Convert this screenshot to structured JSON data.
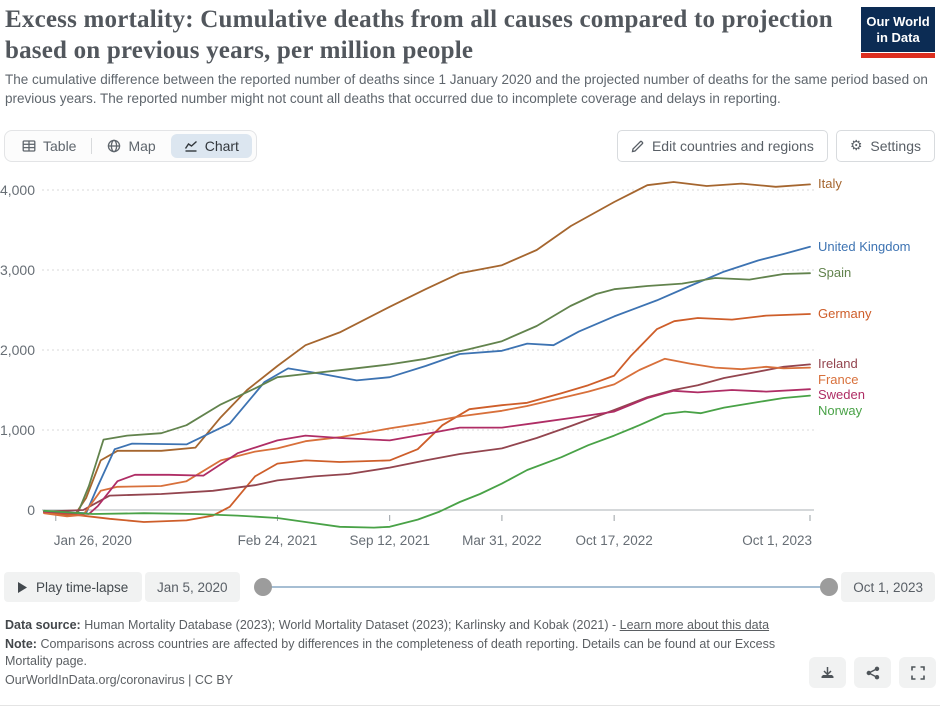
{
  "header": {
    "title": "Excess mortality: Cumulative deaths from all causes compared to projection based on previous years, per million people",
    "subtitle": "The cumulative difference between the reported number of deaths since 1 January 2020 and the projected number of deaths for the same period based on previous years. The reported number might not count all deaths that occurred due to incomplete coverage and delays in reporting.",
    "logo_line1": "Our World",
    "logo_line2": "in Data",
    "logo_colors": {
      "navy": "#0C2C54",
      "red": "#DC2E1F"
    }
  },
  "toolbar": {
    "tabs": [
      {
        "label": "Table",
        "icon": "table-icon",
        "selected": false
      },
      {
        "label": "Map",
        "icon": "globe-icon",
        "selected": false
      },
      {
        "label": "Chart",
        "icon": "line-chart-icon",
        "selected": true
      }
    ],
    "edit_button": "Edit countries and regions",
    "settings_button": "Settings",
    "selected_tab_bg": "#DCE6F0"
  },
  "chart_data": {
    "type": "line",
    "title": "Excess mortality: Cumulative deaths from all causes compared to projection based on previous years, per million people",
    "xlabel": "",
    "ylabel": "",
    "ylim": [
      -300,
      4200
    ],
    "grid": "horizontal-dashed",
    "legend_position": "right-edge-line-labels",
    "x_range": [
      "2020-01-05",
      "2023-10-01"
    ],
    "yticks": [
      0,
      1000,
      2000,
      3000,
      4000
    ],
    "ytick_labels": [
      "0",
      "1,000",
      "2,000",
      "3,000",
      "4,000"
    ],
    "xticks": [
      {
        "date": "2020-01-26",
        "label": "Jan 26, 2020"
      },
      {
        "date": "2021-02-24",
        "label": "Feb 24, 2021"
      },
      {
        "date": "2021-09-12",
        "label": "Sep 12, 2021"
      },
      {
        "date": "2022-03-31",
        "label": "Mar 31, 2022"
      },
      {
        "date": "2022-10-17",
        "label": "Oct 17, 2022"
      },
      {
        "date": "2023-10-01",
        "label": "Oct 1, 2023"
      }
    ],
    "series": [
      {
        "name": "Italy",
        "color": "#A5662F",
        "points": [
          [
            "2020-01-05",
            -30
          ],
          [
            "2020-02-15",
            -60
          ],
          [
            "2020-03-01",
            -50
          ],
          [
            "2020-03-20",
            150
          ],
          [
            "2020-04-15",
            620
          ],
          [
            "2020-05-15",
            740
          ],
          [
            "2020-08-01",
            740
          ],
          [
            "2020-10-01",
            780
          ],
          [
            "2020-11-15",
            1160
          ],
          [
            "2021-01-01",
            1500
          ],
          [
            "2021-02-24",
            1800
          ],
          [
            "2021-04-15",
            2060
          ],
          [
            "2021-06-15",
            2220
          ],
          [
            "2021-09-12",
            2540
          ],
          [
            "2021-11-15",
            2760
          ],
          [
            "2022-01-15",
            2960
          ],
          [
            "2022-03-31",
            3060
          ],
          [
            "2022-06-01",
            3250
          ],
          [
            "2022-08-01",
            3550
          ],
          [
            "2022-10-17",
            3850
          ],
          [
            "2022-12-15",
            4060
          ],
          [
            "2023-01-31",
            4100
          ],
          [
            "2023-03-31",
            4050
          ],
          [
            "2023-06-01",
            4080
          ],
          [
            "2023-08-01",
            4040
          ],
          [
            "2023-10-01",
            4070
          ]
        ]
      },
      {
        "name": "United Kingdom",
        "color": "#3D73B2",
        "points": [
          [
            "2020-01-05",
            -20
          ],
          [
            "2020-03-20",
            -40
          ],
          [
            "2020-04-10",
            300
          ],
          [
            "2020-05-10",
            760
          ],
          [
            "2020-06-10",
            830
          ],
          [
            "2020-09-15",
            820
          ],
          [
            "2020-12-01",
            1080
          ],
          [
            "2021-02-01",
            1600
          ],
          [
            "2021-03-15",
            1770
          ],
          [
            "2021-05-15",
            1700
          ],
          [
            "2021-07-15",
            1620
          ],
          [
            "2021-09-12",
            1660
          ],
          [
            "2021-11-15",
            1800
          ],
          [
            "2022-01-15",
            1950
          ],
          [
            "2022-03-31",
            1990
          ],
          [
            "2022-05-15",
            2080
          ],
          [
            "2022-07-01",
            2060
          ],
          [
            "2022-08-15",
            2230
          ],
          [
            "2022-10-17",
            2420
          ],
          [
            "2023-01-01",
            2620
          ],
          [
            "2023-03-01",
            2800
          ],
          [
            "2023-05-01",
            2980
          ],
          [
            "2023-07-01",
            3120
          ],
          [
            "2023-08-15",
            3200
          ],
          [
            "2023-10-01",
            3290
          ]
        ]
      },
      {
        "name": "Spain",
        "color": "#62834D",
        "points": [
          [
            "2020-01-05",
            -20
          ],
          [
            "2020-03-05",
            -40
          ],
          [
            "2020-03-25",
            300
          ],
          [
            "2020-04-20",
            880
          ],
          [
            "2020-06-01",
            930
          ],
          [
            "2020-08-01",
            960
          ],
          [
            "2020-09-15",
            1060
          ],
          [
            "2020-11-15",
            1320
          ],
          [
            "2021-01-15",
            1520
          ],
          [
            "2021-02-24",
            1660
          ],
          [
            "2021-04-15",
            1700
          ],
          [
            "2021-07-01",
            1760
          ],
          [
            "2021-09-12",
            1820
          ],
          [
            "2021-11-15",
            1890
          ],
          [
            "2022-01-31",
            2010
          ],
          [
            "2022-03-31",
            2110
          ],
          [
            "2022-06-01",
            2300
          ],
          [
            "2022-07-31",
            2550
          ],
          [
            "2022-09-15",
            2700
          ],
          [
            "2022-10-17",
            2760
          ],
          [
            "2022-12-15",
            2800
          ],
          [
            "2023-02-15",
            2830
          ],
          [
            "2023-04-15",
            2900
          ],
          [
            "2023-06-15",
            2880
          ],
          [
            "2023-08-15",
            2950
          ],
          [
            "2023-10-01",
            2960
          ]
        ]
      },
      {
        "name": "Germany",
        "color": "#CE5E2A",
        "points": [
          [
            "2020-01-05",
            -30
          ],
          [
            "2020-03-01",
            -60
          ],
          [
            "2020-05-01",
            -110
          ],
          [
            "2020-07-01",
            -150
          ],
          [
            "2020-09-15",
            -130
          ],
          [
            "2020-11-01",
            -70
          ],
          [
            "2020-12-01",
            40
          ],
          [
            "2021-01-15",
            420
          ],
          [
            "2021-02-24",
            580
          ],
          [
            "2021-04-15",
            620
          ],
          [
            "2021-06-15",
            600
          ],
          [
            "2021-09-12",
            620
          ],
          [
            "2021-11-01",
            760
          ],
          [
            "2021-12-15",
            1060
          ],
          [
            "2022-02-01",
            1260
          ],
          [
            "2022-03-31",
            1310
          ],
          [
            "2022-05-15",
            1340
          ],
          [
            "2022-07-15",
            1460
          ],
          [
            "2022-09-01",
            1560
          ],
          [
            "2022-10-17",
            1680
          ],
          [
            "2022-11-15",
            1920
          ],
          [
            "2023-01-01",
            2260
          ],
          [
            "2023-02-01",
            2360
          ],
          [
            "2023-03-15",
            2400
          ],
          [
            "2023-05-15",
            2380
          ],
          [
            "2023-07-15",
            2430
          ],
          [
            "2023-10-01",
            2450
          ]
        ]
      },
      {
        "name": "Ireland",
        "color": "#93454F",
        "points": [
          [
            "2020-01-05",
            -20
          ],
          [
            "2020-03-15",
            0
          ],
          [
            "2020-05-01",
            180
          ],
          [
            "2020-08-01",
            200
          ],
          [
            "2020-11-01",
            240
          ],
          [
            "2021-01-15",
            310
          ],
          [
            "2021-02-24",
            370
          ],
          [
            "2021-05-01",
            420
          ],
          [
            "2021-07-01",
            450
          ],
          [
            "2021-09-12",
            530
          ],
          [
            "2021-11-15",
            620
          ],
          [
            "2022-01-15",
            700
          ],
          [
            "2022-03-31",
            770
          ],
          [
            "2022-06-01",
            900
          ],
          [
            "2022-08-01",
            1050
          ],
          [
            "2022-10-17",
            1250
          ],
          [
            "2022-12-15",
            1410
          ],
          [
            "2023-01-31",
            1500
          ],
          [
            "2023-03-15",
            1560
          ],
          [
            "2023-05-01",
            1650
          ],
          [
            "2023-07-01",
            1730
          ],
          [
            "2023-08-15",
            1790
          ],
          [
            "2023-10-01",
            1820
          ]
        ]
      },
      {
        "name": "France",
        "color": "#D8703B",
        "points": [
          [
            "2020-01-05",
            -40
          ],
          [
            "2020-02-15",
            -80
          ],
          [
            "2020-03-15",
            -60
          ],
          [
            "2020-04-15",
            240
          ],
          [
            "2020-05-15",
            290
          ],
          [
            "2020-08-01",
            300
          ],
          [
            "2020-09-15",
            360
          ],
          [
            "2020-11-15",
            620
          ],
          [
            "2021-01-15",
            730
          ],
          [
            "2021-02-24",
            770
          ],
          [
            "2021-04-15",
            860
          ],
          [
            "2021-06-15",
            910
          ],
          [
            "2021-09-12",
            1020
          ],
          [
            "2021-11-15",
            1090
          ],
          [
            "2022-01-15",
            1170
          ],
          [
            "2022-03-31",
            1240
          ],
          [
            "2022-05-15",
            1300
          ],
          [
            "2022-07-15",
            1400
          ],
          [
            "2022-09-01",
            1480
          ],
          [
            "2022-10-17",
            1570
          ],
          [
            "2022-12-01",
            1750
          ],
          [
            "2023-01-15",
            1890
          ],
          [
            "2023-03-01",
            1830
          ],
          [
            "2023-04-15",
            1780
          ],
          [
            "2023-06-01",
            1760
          ],
          [
            "2023-07-15",
            1790
          ],
          [
            "2023-08-15",
            1770
          ],
          [
            "2023-10-01",
            1780
          ]
        ]
      },
      {
        "name": "Sweden",
        "color": "#AF2D65",
        "points": [
          [
            "2020-01-05",
            -20
          ],
          [
            "2020-03-25",
            -50
          ],
          [
            "2020-04-10",
            50
          ],
          [
            "2020-05-15",
            360
          ],
          [
            "2020-06-15",
            440
          ],
          [
            "2020-08-15",
            440
          ],
          [
            "2020-10-15",
            430
          ],
          [
            "2020-12-15",
            710
          ],
          [
            "2021-02-24",
            870
          ],
          [
            "2021-04-15",
            930
          ],
          [
            "2021-06-15",
            900
          ],
          [
            "2021-09-12",
            870
          ],
          [
            "2021-11-15",
            950
          ],
          [
            "2022-01-15",
            1030
          ],
          [
            "2022-03-31",
            1030
          ],
          [
            "2022-06-01",
            1090
          ],
          [
            "2022-08-01",
            1150
          ],
          [
            "2022-10-17",
            1230
          ],
          [
            "2022-12-15",
            1400
          ],
          [
            "2023-01-31",
            1490
          ],
          [
            "2023-03-15",
            1470
          ],
          [
            "2023-05-15",
            1500
          ],
          [
            "2023-07-15",
            1480
          ],
          [
            "2023-10-01",
            1510
          ]
        ]
      },
      {
        "name": "Norway",
        "color": "#49A247",
        "points": [
          [
            "2020-01-05",
            -10
          ],
          [
            "2020-04-01",
            -50
          ],
          [
            "2020-07-01",
            -40
          ],
          [
            "2020-10-01",
            -50
          ],
          [
            "2020-12-15",
            -70
          ],
          [
            "2021-02-24",
            -100
          ],
          [
            "2021-04-15",
            -150
          ],
          [
            "2021-06-15",
            -210
          ],
          [
            "2021-08-15",
            -220
          ],
          [
            "2021-09-12",
            -210
          ],
          [
            "2021-11-01",
            -120
          ],
          [
            "2021-12-10",
            -20
          ],
          [
            "2022-01-15",
            100
          ],
          [
            "2022-02-20",
            200
          ],
          [
            "2022-03-31",
            330
          ],
          [
            "2022-05-15",
            500
          ],
          [
            "2022-07-15",
            660
          ],
          [
            "2022-09-01",
            810
          ],
          [
            "2022-10-17",
            930
          ],
          [
            "2022-12-01",
            1060
          ],
          [
            "2023-01-15",
            1200
          ],
          [
            "2023-02-20",
            1230
          ],
          [
            "2023-03-20",
            1210
          ],
          [
            "2023-05-01",
            1280
          ],
          [
            "2023-07-01",
            1350
          ],
          [
            "2023-08-15",
            1400
          ],
          [
            "2023-10-01",
            1430
          ]
        ]
      }
    ]
  },
  "timeline": {
    "play_label": "Play time-lapse",
    "start_date": "Jan 5, 2020",
    "end_date": "Oct 1, 2023"
  },
  "footer": {
    "data_source_label": "Data source:",
    "data_source": "Human Mortality Database (2023); World Mortality Dataset (2023); Karlinsky and Kobak (2021) -",
    "learn_more_link": "Learn more about this data",
    "note_label": "Note:",
    "note": "Comparisons across countries are affected by differences in the completeness of death reporting. Details can be found at our Excess Mortality page.",
    "attribution": "OurWorldInData.org/coronavirus | CC BY",
    "action_icons": [
      "download-icon",
      "share-icon",
      "fullscreen-icon"
    ]
  }
}
